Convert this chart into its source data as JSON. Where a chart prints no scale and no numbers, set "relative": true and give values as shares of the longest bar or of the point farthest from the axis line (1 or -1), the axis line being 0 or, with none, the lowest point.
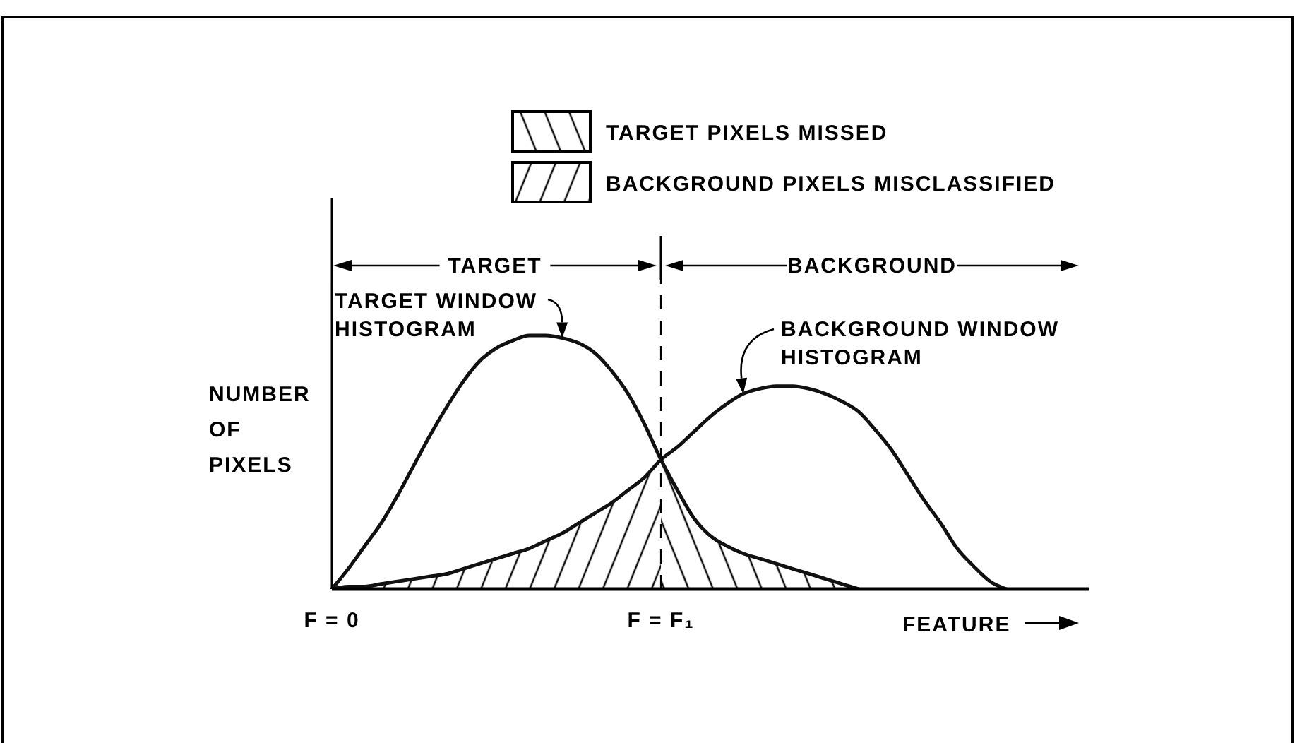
{
  "chart_data": {
    "type": "line",
    "relative": true,
    "legend": "top",
    "marker": "none",
    "ylabel": "NUMBER OF PIXELS",
    "xlabel": "FEATURE",
    "categories": [
      "F = 0",
      null,
      null,
      null,
      null,
      null,
      null,
      null,
      null,
      null,
      null,
      null,
      null,
      null,
      null,
      null,
      null,
      null,
      null,
      null,
      "F = F₁",
      null,
      null,
      null,
      null,
      null,
      null,
      null,
      null,
      null,
      null,
      null,
      null,
      null,
      null,
      null,
      null,
      null,
      null,
      null,
      null,
      null,
      null,
      null,
      null,
      null,
      null
    ],
    "annotations": [
      "TARGET",
      "BACKGROUND"
    ],
    "ref_lines": [
      {
        "axis": "x",
        "value": "F = F₁",
        "color": "#000000",
        "line_style": "dashed"
      }
    ],
    "series": [
      {
        "name": "TARGET WINDOW HISTOGRAM",
        "color": "#111111",
        "values": [
          0,
          0.08,
          0.17,
          0.26,
          0.37,
          0.49,
          0.61,
          0.72,
          0.82,
          0.9,
          0.95,
          0.98,
          1,
          1,
          0.99,
          0.97,
          0.93,
          0.86,
          0.77,
          0.65,
          0.51,
          0.39,
          0.28,
          0.21,
          0.17,
          0.14,
          0.12,
          0.1,
          0.08,
          0.06,
          0.04,
          0.02,
          0,
          null,
          null,
          null,
          null,
          null,
          null,
          null,
          null,
          null,
          null,
          null,
          null,
          null,
          null
        ]
      },
      {
        "name": "BACKGROUND WINDOW HISTOGRAM",
        "color": "#111111",
        "values": [
          0,
          0.01,
          0.01,
          0.02,
          0.03,
          0.04,
          0.05,
          0.06,
          0.08,
          0.1,
          0.12,
          0.14,
          0.16,
          0.19,
          0.22,
          0.26,
          0.3,
          0.34,
          0.39,
          0.44,
          0.51,
          0.56,
          0.62,
          0.68,
          0.73,
          0.77,
          0.79,
          0.8,
          0.8,
          0.79,
          0.77,
          0.74,
          0.7,
          0.63,
          0.55,
          0.45,
          0.35,
          0.26,
          0.16,
          0.09,
          0.03,
          0,
          null,
          null,
          null,
          null,
          null
        ]
      },
      {
        "name": "TARGET PIXELS MISSED",
        "type": "area",
        "color": "#111111",
        "values": [
          null,
          null,
          null,
          null,
          null,
          null,
          null,
          null,
          null,
          null,
          null,
          null,
          null,
          null,
          null,
          null,
          null,
          null,
          null,
          null,
          0.51,
          0.39,
          0.28,
          0.21,
          0.17,
          0.14,
          0.12,
          0.1,
          0.08,
          0.06,
          0.04,
          0.02,
          0,
          null,
          null,
          null,
          null,
          null,
          null,
          null,
          null,
          null,
          null,
          null,
          null,
          null,
          null
        ]
      },
      {
        "name": "BACKGROUND PIXELS MISCLASSIFIED",
        "type": "area",
        "color": "#111111",
        "values": [
          0,
          0.01,
          0.01,
          0.02,
          0.03,
          0.04,
          0.05,
          0.06,
          0.08,
          0.1,
          0.12,
          0.14,
          0.16,
          0.19,
          0.22,
          0.26,
          0.3,
          0.34,
          0.39,
          0.44,
          0.51,
          null,
          null,
          null,
          null,
          null,
          null,
          null,
          null,
          null,
          null,
          null,
          null,
          null,
          null,
          null,
          null,
          null,
          null,
          null,
          null,
          null,
          null,
          null,
          null,
          null,
          null
        ]
      }
    ]
  }
}
